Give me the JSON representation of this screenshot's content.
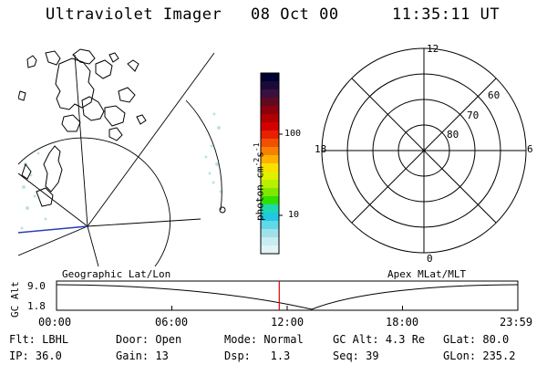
{
  "header": {
    "instrument": "Ultraviolet Imager",
    "date": "08 Oct 00",
    "time": "11:35:11 UT"
  },
  "left_panel": {
    "label": "Geographic Lat/Lon"
  },
  "right_panel": {
    "label": "Apex MLat/MLT",
    "mlt_labels": {
      "top": "12",
      "left": "18",
      "right": "6",
      "bottom": "0"
    },
    "lat_labels": [
      "60",
      "70",
      "80"
    ]
  },
  "colorbar": {
    "unit_label": "photon cm",
    "exp1": "-2",
    "s_label": "s",
    "exp2": "-1",
    "tick_100": "100",
    "tick_10": "10",
    "colors": [
      "#000030",
      "#1a0a3a",
      "#3a1040",
      "#600a20",
      "#8c0010",
      "#b00000",
      "#d40000",
      "#e82000",
      "#f05000",
      "#f88000",
      "#ffb000",
      "#f8e000",
      "#e0f000",
      "#b8f000",
      "#80e800",
      "#30e000",
      "#20d8b0",
      "#20c8e0",
      "#60d8e8",
      "#a0e0e8",
      "#c8ecf0",
      "#e0f4f6"
    ]
  },
  "timeline": {
    "axis_label": "GC Alt",
    "y_top": "9.0",
    "y_bottom": "1.8",
    "ticks": [
      "00:00",
      "06:00",
      "12:00",
      "18:00",
      "23:59"
    ],
    "current_time_hours": 11.586
  },
  "footer": {
    "row1": [
      {
        "label": "Flt:",
        "value": "LBHL"
      },
      {
        "label": "Door:",
        "value": "Open"
      },
      {
        "label": "Mode:",
        "value": "Normal"
      },
      {
        "label": "GC Alt:",
        "value": "4.3 Re"
      },
      {
        "label": "GLat:",
        "value": "80.0"
      }
    ],
    "row2": [
      {
        "label": "IP:",
        "value": "36.0"
      },
      {
        "label": "Gain:",
        "value": "13"
      },
      {
        "label": "Dsp:",
        "value": "1.3"
      },
      {
        "label": "Seq:",
        "value": "39"
      },
      {
        "label": "GLon:",
        "value": "235.2"
      }
    ]
  }
}
